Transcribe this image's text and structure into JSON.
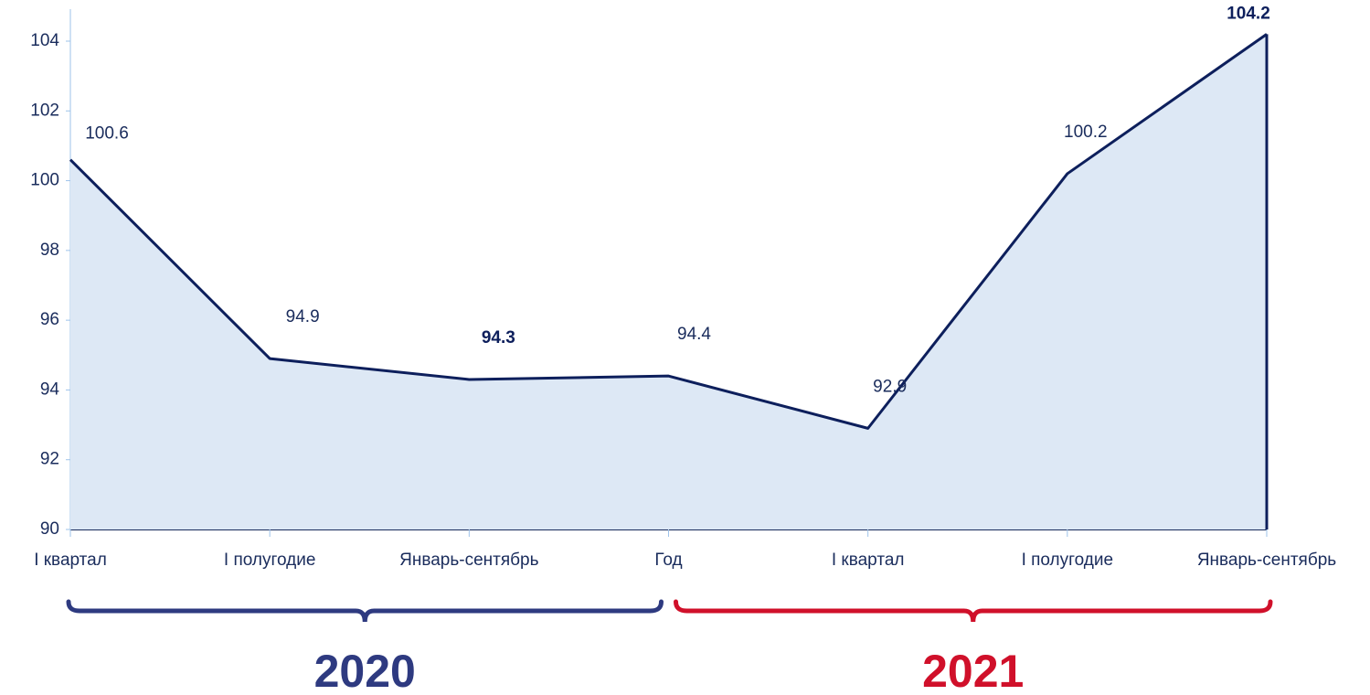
{
  "chart_data": {
    "type": "area",
    "categories": [
      "I квартал",
      "I полугодие",
      "Январь-сентябрь",
      "Год",
      "I квартал",
      "I полугодие",
      "Январь-сентябрь"
    ],
    "values": [
      100.6,
      94.9,
      94.3,
      94.4,
      92.9,
      100.2,
      104.2
    ],
    "value_labels_bold": [
      false,
      false,
      true,
      false,
      false,
      false,
      true
    ],
    "line_color": "#0d1f5c",
    "fill_color": "#dde8f5",
    "ylim": [
      90,
      104
    ],
    "yticks": [
      90,
      92,
      94,
      96,
      98,
      100,
      102,
      104
    ],
    "groups": [
      {
        "label": "2020",
        "color": "#2e3a80",
        "from": 0,
        "to": 3
      },
      {
        "label": "2021",
        "color": "#d0102a",
        "from": 3,
        "to": 6
      }
    ]
  }
}
